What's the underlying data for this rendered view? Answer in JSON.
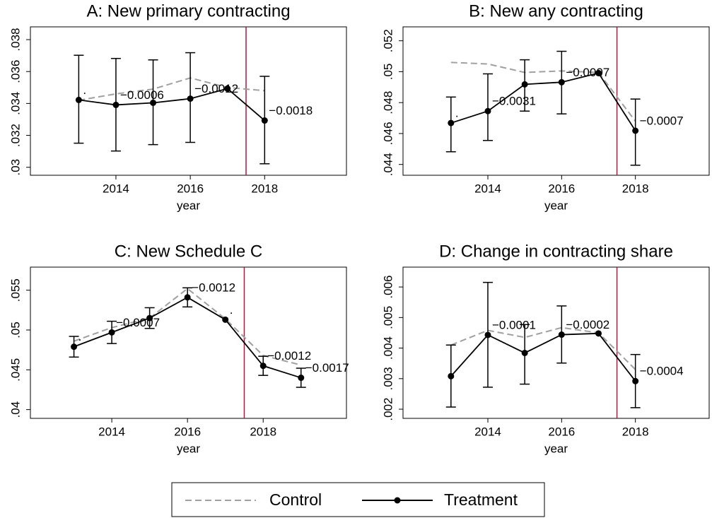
{
  "chart_data": [
    {
      "type": "line",
      "title": "A: New primary contracting",
      "x_label": "year",
      "x": [
        2013,
        2014,
        2015,
        2016,
        2017,
        2018
      ],
      "xlim": [
        2011.7,
        2020.2
      ],
      "xticks": [
        2014,
        2016,
        2018
      ],
      "ylim": [
        0.0295,
        0.0388
      ],
      "yticks": [
        {
          "value": 0.03,
          "label": ".03"
        },
        {
          "value": 0.032,
          "label": ".032"
        },
        {
          "value": 0.034,
          "label": ".034"
        },
        {
          "value": 0.036,
          "label": ".036"
        },
        {
          "value": 0.038,
          "label": ".038"
        }
      ],
      "vline": 2017.5,
      "vline_color": "#b0173f",
      "series": [
        {
          "name": "Control",
          "color": "#a0a0a0",
          "dashed": true,
          "values": [
            0.0342,
            0.0346,
            0.0349,
            0.0356,
            0.035,
            0.0348
          ]
        },
        {
          "name": "Treatment",
          "color": "#000000",
          "markers": true,
          "values": [
            0.03422,
            0.03391,
            0.03404,
            0.0343,
            0.03493,
            0.03293
          ],
          "ci_high": [
            0.03702,
            0.03682,
            0.03673,
            0.03718,
            null,
            0.0357
          ],
          "ci_low": [
            0.03151,
            0.03102,
            0.03142,
            0.03156,
            null,
            0.03022
          ],
          "point_labels": [
            ".",
            "−0.0006",
            null,
            "−0.0012",
            null,
            "−0.0018"
          ]
        }
      ]
    },
    {
      "type": "line",
      "title": "B: New any contracting",
      "x_label": "year",
      "x": [
        2013,
        2014,
        2015,
        2016,
        2017,
        2018
      ],
      "xlim": [
        2011.7,
        2020.0
      ],
      "xticks": [
        2014,
        2016,
        2018
      ],
      "ylim": [
        0.0433,
        0.0529
      ],
      "yticks": [
        {
          "value": 0.044,
          "label": ".044"
        },
        {
          "value": 0.046,
          "label": ".046"
        },
        {
          "value": 0.048,
          "label": ".048"
        },
        {
          "value": 0.05,
          "label": ".05"
        },
        {
          "value": 0.052,
          "label": ".052"
        }
      ],
      "vline": 2017.5,
      "vline_color": "#b0173f",
      "series": [
        {
          "name": "Control",
          "color": "#a0a0a0",
          "dashed": true,
          "values": [
            0.0506,
            0.0505,
            0.04995,
            0.05005,
            0.04995,
            0.0468
          ]
        },
        {
          "name": "Treatment",
          "color": "#000000",
          "markers": true,
          "values": [
            0.04668,
            0.04745,
            0.04918,
            0.04932,
            0.04991,
            0.04618
          ],
          "ci_high": [
            0.04836,
            0.04986,
            0.05077,
            0.05132,
            null,
            0.04823
          ],
          "ci_low": [
            0.04482,
            0.04555,
            0.04745,
            0.04727,
            null,
            0.04395
          ],
          "point_labels": [
            ".",
            "−0.0031",
            null,
            "−0.0007",
            null,
            "−0.0007"
          ]
        }
      ]
    },
    {
      "type": "line",
      "title": "C: New Schedule C",
      "x_label": "year",
      "x": [
        2013,
        2014,
        2015,
        2016,
        2017,
        2018,
        2019
      ],
      "xlim": [
        2011.85,
        2020.2
      ],
      "xticks": [
        2014,
        2016,
        2018
      ],
      "ylim": [
        0.0389,
        0.0579
      ],
      "yticks": [
        {
          "value": 0.04,
          "label": ".04"
        },
        {
          "value": 0.045,
          "label": ".045"
        },
        {
          "value": 0.05,
          "label": ".05"
        },
        {
          "value": 0.055,
          "label": ".055"
        }
      ],
      "vline": 2017.5,
      "vline_color": "#b0173f",
      "series": [
        {
          "name": "Control",
          "color": "#a0a0a0",
          "dashed": true,
          "values": [
            0.0486,
            0.0503,
            0.0515,
            0.0552,
            0.0514,
            0.0468,
            0.0456
          ]
        },
        {
          "name": "Treatment",
          "color": "#000000",
          "markers": true,
          "values": [
            0.0479,
            0.0497,
            0.0515,
            0.0541,
            0.0513,
            0.0455,
            0.044
          ],
          "ci_high": [
            0.0492,
            0.0511,
            0.0528,
            0.0553,
            null,
            0.0467,
            0.0452
          ],
          "ci_low": [
            0.0466,
            0.0483,
            0.0502,
            0.0529,
            null,
            0.0443,
            0.0428
          ],
          "point_labels": [
            ".",
            "−0.0007",
            null,
            "−0.0012",
            ".",
            "−0.0012",
            "−0.0017"
          ]
        }
      ]
    },
    {
      "type": "line",
      "title": "D: Change in contracting share",
      "x_label": "year",
      "x": [
        2013,
        2014,
        2015,
        2016,
        2017,
        2018
      ],
      "xlim": [
        2011.7,
        2020.0
      ],
      "xticks": [
        2014,
        2016,
        2018
      ],
      "ylim": [
        0.0017,
        0.00665
      ],
      "yticks": [
        {
          "value": 0.002,
          "label": ".002"
        },
        {
          "value": 0.003,
          "label": ".003"
        },
        {
          "value": 0.004,
          "label": ".004"
        },
        {
          "value": 0.005,
          "label": ".005"
        },
        {
          "value": 0.006,
          "label": ".006"
        }
      ],
      "vline": 2017.5,
      "vline_color": "#b0173f",
      "series": [
        {
          "name": "Control",
          "color": "#a0a0a0",
          "dashed": true,
          "values": [
            0.0041,
            0.00458,
            0.00435,
            0.00467,
            0.0045,
            0.0033
          ]
        },
        {
          "name": "Treatment",
          "color": "#000000",
          "markers": true,
          "values": [
            0.00308,
            0.00443,
            0.00384,
            0.00444,
            0.00448,
            0.00292
          ],
          "ci_high": [
            0.0041,
            0.00615,
            0.00477,
            0.00538,
            null,
            0.00379
          ],
          "ci_low": [
            0.00207,
            0.00272,
            0.00282,
            0.00351,
            null,
            0.00205
          ],
          "point_labels": [
            null,
            "−0.0001",
            null,
            "−0.0002",
            null,
            "−0.0004"
          ]
        }
      ]
    }
  ]
}
